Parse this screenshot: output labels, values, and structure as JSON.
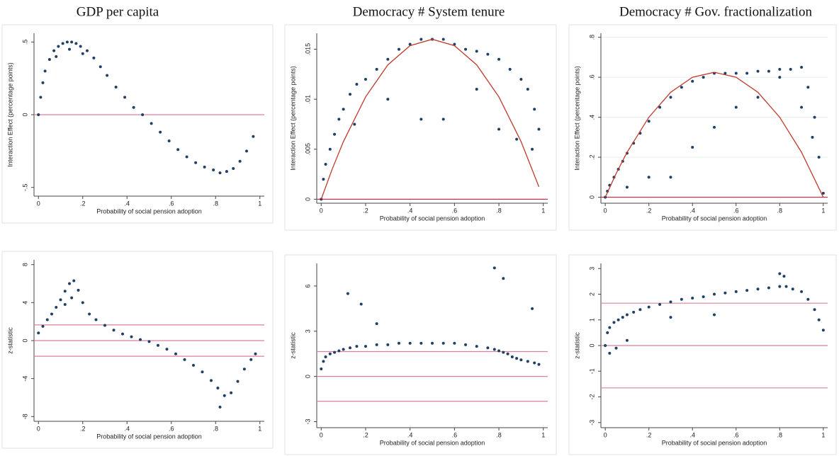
{
  "chart_data": [
    {
      "type": "scatter",
      "title": "GDP per capita",
      "xlabel": "Probability of social pension adoption",
      "ylabel": "Interaction Effect (percentage points)",
      "color": "#1f3f66",
      "xlim": [
        -0.02,
        1.02
      ],
      "ylim": [
        -0.56,
        0.56
      ],
      "xticks": [
        0,
        {
          "value": 0.2,
          "label": ".2"
        },
        {
          "value": 0.4,
          "label": ".4"
        },
        {
          "value": 0.6,
          "label": ".6"
        },
        {
          "value": 0.8,
          "label": ".8"
        },
        1
      ],
      "yticks": [
        {
          "value": -0.5,
          "label": "-.5"
        },
        0,
        {
          "value": 0.5,
          "label": ".5"
        }
      ],
      "hlines": [
        0
      ],
      "hline_color": "#d9809a",
      "x": [
        0,
        0.01,
        0.02,
        0.03,
        0.05,
        0.07,
        0.09,
        0.11,
        0.13,
        0.15,
        0.17,
        0.19,
        0.22,
        0.25,
        0.28,
        0.31,
        0.35,
        0.39,
        0.43,
        0.47,
        0.51,
        0.55,
        0.59,
        0.63,
        0.67,
        0.71,
        0.75,
        0.79,
        0.82,
        0.85,
        0.88,
        0.91,
        0.94,
        0.97,
        0.14,
        0.2,
        0.08
      ],
      "y": [
        0,
        0.12,
        0.22,
        0.3,
        0.38,
        0.44,
        0.47,
        0.49,
        0.5,
        0.5,
        0.49,
        0.47,
        0.44,
        0.39,
        0.33,
        0.27,
        0.19,
        0.12,
        0.05,
        0,
        -0.06,
        -0.12,
        -0.18,
        -0.24,
        -0.29,
        -0.33,
        -0.36,
        -0.38,
        -0.4,
        -0.39,
        -0.37,
        -0.32,
        -0.25,
        -0.15,
        0.45,
        0.42,
        0.4
      ]
    },
    {
      "type": "scatter",
      "title": "Democracy # System tenure",
      "xlabel": "Probability of social pension adoption",
      "ylabel": "Interaction Effect (percentage points)",
      "color": "#1f3f66",
      "xlim": [
        -0.02,
        1.02
      ],
      "ylim": [
        -0.0004,
        0.0166
      ],
      "xticks": [
        0,
        {
          "value": 0.2,
          "label": ".2"
        },
        {
          "value": 0.4,
          "label": ".4"
        },
        {
          "value": 0.6,
          "label": ".6"
        },
        {
          "value": 0.8,
          "label": ".8"
        },
        1
      ],
      "yticks": [
        0,
        {
          "value": 0.005,
          "label": ".005"
        },
        {
          "value": 0.01,
          "label": ".01"
        },
        {
          "value": 0.015,
          "label": ".015"
        }
      ],
      "hlines": [
        0
      ],
      "hline_color": "#c8324a",
      "x": [
        0,
        0.01,
        0.02,
        0.04,
        0.06,
        0.08,
        0.1,
        0.13,
        0.16,
        0.2,
        0.25,
        0.3,
        0.35,
        0.4,
        0.45,
        0.5,
        0.55,
        0.6,
        0.65,
        0.7,
        0.75,
        0.8,
        0.85,
        0.9,
        0.93,
        0.96,
        0.98,
        0.15,
        0.3,
        0.45,
        0.55,
        0.7,
        0.8,
        0.88,
        0.95
      ],
      "y": [
        0,
        0.002,
        0.0035,
        0.005,
        0.0065,
        0.008,
        0.009,
        0.0105,
        0.0115,
        0.012,
        0.013,
        0.014,
        0.015,
        0.0155,
        0.016,
        0.016,
        0.016,
        0.0155,
        0.015,
        0.0148,
        0.0145,
        0.014,
        0.013,
        0.012,
        0.011,
        0.009,
        0.007,
        0.0075,
        0.01,
        0.008,
        0.008,
        0.011,
        0.007,
        0.006,
        0.005
      ],
      "fit": {
        "color": "#c0392b",
        "x": [
          0,
          0.05,
          0.1,
          0.2,
          0.3,
          0.4,
          0.5,
          0.6,
          0.7,
          0.8,
          0.9,
          0.98
        ],
        "y": [
          0,
          0.00304,
          0.00576,
          0.01024,
          0.01344,
          0.01536,
          0.016,
          0.01536,
          0.01344,
          0.01024,
          0.00576,
          0.00125
        ]
      }
    },
    {
      "type": "scatter",
      "title": "Democracy # Gov. fractionalization",
      "xlabel": "Probability of social pension adoption",
      "ylabel": "Interaction Effect (percentage points)",
      "color": "#1f3f66",
      "xlim": [
        -0.02,
        1.02
      ],
      "ylim": [
        -0.03,
        0.82
      ],
      "xticks": [
        0,
        {
          "value": 0.2,
          "label": ".2"
        },
        {
          "value": 0.4,
          "label": ".4"
        },
        {
          "value": 0.6,
          "label": ".6"
        },
        {
          "value": 0.8,
          "label": ".8"
        },
        1
      ],
      "yticks": [
        0,
        {
          "value": 0.2,
          "label": ".2"
        },
        {
          "value": 0.4,
          "label": ".4"
        },
        {
          "value": 0.6,
          "label": ".6"
        },
        {
          "value": 0.8,
          "label": ".8"
        }
      ],
      "grid": true,
      "hlines": [
        0
      ],
      "hline_color": "#c8324a",
      "x": [
        0,
        0.01,
        0.02,
        0.04,
        0.06,
        0.08,
        0.1,
        0.13,
        0.16,
        0.2,
        0.25,
        0.3,
        0.35,
        0.4,
        0.45,
        0.5,
        0.55,
        0.6,
        0.65,
        0.7,
        0.75,
        0.8,
        0.85,
        0.9,
        0.93,
        0.96,
        0.98,
        1,
        0.1,
        0.2,
        0.3,
        0.4,
        0.5,
        0.6,
        0.7,
        0.8,
        0.9,
        0.95
      ],
      "y": [
        0,
        0.03,
        0.06,
        0.1,
        0.14,
        0.18,
        0.22,
        0.27,
        0.32,
        0.38,
        0.45,
        0.5,
        0.55,
        0.58,
        0.6,
        0.62,
        0.62,
        0.62,
        0.62,
        0.63,
        0.63,
        0.64,
        0.64,
        0.65,
        0.55,
        0.4,
        0.2,
        0.02,
        0.05,
        0.1,
        0.1,
        0.25,
        0.35,
        0.45,
        0.5,
        0.6,
        0.45,
        0.3
      ],
      "fit": {
        "color": "#c0392b",
        "x": [
          0,
          0.05,
          0.1,
          0.2,
          0.3,
          0.4,
          0.5,
          0.6,
          0.7,
          0.8,
          0.9,
          1
        ],
        "y": [
          0,
          0.11875,
          0.225,
          0.4,
          0.525,
          0.6,
          0.625,
          0.6,
          0.525,
          0.4,
          0.225,
          0
        ]
      }
    },
    {
      "type": "scatter",
      "xlabel": "Probability of social pension adoption",
      "ylabel": "z-statistic",
      "color": "#1f3f66",
      "xlim": [
        -0.02,
        1.02
      ],
      "ylim": [
        -8.5,
        8.5
      ],
      "xticks": [
        0,
        {
          "value": 0.2,
          "label": ".2"
        },
        {
          "value": 0.4,
          "label": ".4"
        },
        {
          "value": 0.6,
          "label": ".6"
        },
        {
          "value": 0.8,
          "label": ".8"
        },
        1
      ],
      "yticks": [
        -8,
        -4,
        0,
        4,
        8
      ],
      "hlines": [
        1.65,
        0,
        -1.65
      ],
      "hline_color": "#d9809a",
      "x": [
        0,
        0.02,
        0.04,
        0.06,
        0.08,
        0.1,
        0.12,
        0.14,
        0.16,
        0.18,
        0.2,
        0.23,
        0.26,
        0.3,
        0.34,
        0.38,
        0.42,
        0.46,
        0.5,
        0.54,
        0.58,
        0.62,
        0.66,
        0.7,
        0.74,
        0.78,
        0.81,
        0.84,
        0.87,
        0.9,
        0.93,
        0.96,
        0.98,
        0.15,
        0.82,
        0.12
      ],
      "y": [
        0.8,
        1.5,
        2.2,
        2.8,
        3.5,
        4.3,
        5.2,
        6,
        6.3,
        5.3,
        4,
        2.8,
        2.2,
        1.6,
        1.1,
        0.7,
        0.4,
        0.1,
        -0.1,
        -0.5,
        -0.9,
        -1.4,
        -2,
        -2.6,
        -3.3,
        -4.2,
        -5,
        -5.8,
        -5.5,
        -4.3,
        -3,
        -2,
        -1.4,
        4.5,
        -7,
        3.8
      ]
    },
    {
      "type": "scatter",
      "xlabel": "Probability of social pension adoption",
      "ylabel": "z-statistic",
      "color": "#1f3f66",
      "xlim": [
        -0.02,
        1.02
      ],
      "ylim": [
        -3.4,
        7.5
      ],
      "xticks": [
        0,
        {
          "value": 0.2,
          "label": ".2"
        },
        {
          "value": 0.4,
          "label": ".4"
        },
        {
          "value": 0.6,
          "label": ".6"
        },
        {
          "value": 0.8,
          "label": ".8"
        },
        1
      ],
      "yticks": [
        -3,
        0,
        3,
        6
      ],
      "hlines": [
        1.65,
        0,
        -1.65
      ],
      "hline_color": "#d9809a",
      "x": [
        0,
        0.01,
        0.02,
        0.04,
        0.06,
        0.08,
        0.1,
        0.13,
        0.16,
        0.2,
        0.25,
        0.3,
        0.35,
        0.4,
        0.45,
        0.5,
        0.55,
        0.6,
        0.65,
        0.7,
        0.75,
        0.78,
        0.8,
        0.82,
        0.84,
        0.86,
        0.88,
        0.9,
        0.93,
        0.96,
        0.98,
        0.12,
        0.18,
        0.25,
        0.82,
        0.78,
        0.95
      ],
      "y": [
        0.5,
        1,
        1.3,
        1.5,
        1.6,
        1.7,
        1.8,
        1.9,
        2,
        2,
        2.1,
        2.1,
        2.2,
        2.2,
        2.2,
        2.2,
        2.2,
        2.2,
        2.1,
        2,
        1.9,
        1.8,
        1.7,
        1.6,
        1.5,
        1.3,
        1.2,
        1.1,
        1,
        0.9,
        0.8,
        5.5,
        4.8,
        3.5,
        6.5,
        7.2,
        4.5
      ]
    },
    {
      "type": "scatter",
      "xlabel": "Probability of social pension adoption",
      "ylabel": "z-statistic",
      "color": "#1f3f66",
      "xlim": [
        -0.02,
        1.02
      ],
      "ylim": [
        -3.2,
        3.2
      ],
      "xticks": [
        0,
        {
          "value": 0.2,
          "label": ".2"
        },
        {
          "value": 0.4,
          "label": ".4"
        },
        {
          "value": 0.6,
          "label": ".6"
        },
        {
          "value": 0.8,
          "label": ".8"
        },
        1
      ],
      "yticks": [
        -3,
        -2,
        -1,
        0,
        1,
        2,
        3
      ],
      "hlines": [
        1.65,
        0,
        -1.65
      ],
      "hline_color": "#d9809a",
      "x": [
        0,
        0.01,
        0.02,
        0.04,
        0.06,
        0.08,
        0.1,
        0.13,
        0.16,
        0.2,
        0.25,
        0.3,
        0.35,
        0.4,
        0.45,
        0.5,
        0.55,
        0.6,
        0.65,
        0.7,
        0.75,
        0.8,
        0.83,
        0.86,
        0.9,
        0.93,
        0.96,
        0.98,
        1,
        0.02,
        0.05,
        0.1,
        0.3,
        0.5,
        0.8,
        0.82
      ],
      "y": [
        0,
        0.5,
        0.7,
        0.9,
        1,
        1.1,
        1.2,
        1.3,
        1.4,
        1.5,
        1.6,
        1.7,
        1.8,
        1.85,
        1.9,
        2,
        2.05,
        2.1,
        2.15,
        2.2,
        2.25,
        2.3,
        2.3,
        2.2,
        2.1,
        1.8,
        1.4,
        1,
        0.6,
        -0.3,
        -0.1,
        0.2,
        1.1,
        1.2,
        2.8,
        2.7
      ]
    }
  ]
}
